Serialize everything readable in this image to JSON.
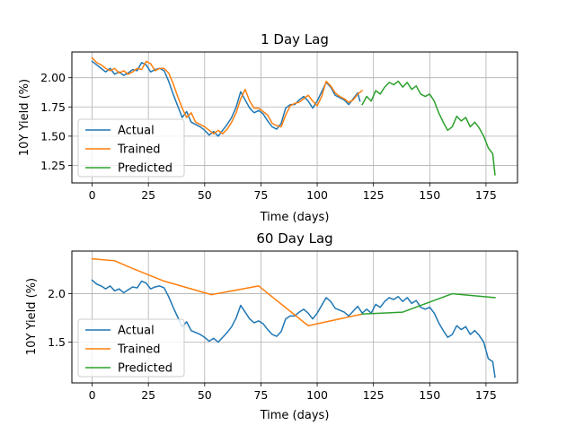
{
  "chart_data": [
    {
      "type": "line",
      "title": "1 Day Lag",
      "xlabel": "Time (days)",
      "ylabel": "10Y Yield (%)",
      "xlim": [
        -9,
        189
      ],
      "ylim": [
        1.1,
        2.22
      ],
      "xticks": [
        0,
        25,
        50,
        75,
        100,
        125,
        150,
        175
      ],
      "yticks": [
        1.25,
        1.5,
        1.75,
        2.0
      ],
      "ytick_labels": [
        "1.25",
        "1.50",
        "1.75",
        "2.00"
      ],
      "grid": true,
      "legend_position": "lower-left",
      "series": [
        {
          "name": "Actual",
          "color": "#1f77b4",
          "x": [
            0,
            2,
            4,
            6,
            8,
            10,
            12,
            14,
            16,
            18,
            20,
            22,
            24,
            26,
            28,
            30,
            32,
            34,
            36,
            38,
            40,
            42,
            44,
            46,
            48,
            50,
            52,
            54,
            56,
            58,
            60,
            62,
            64,
            66,
            68,
            70,
            72,
            74,
            76,
            78,
            80,
            82,
            84,
            86,
            88,
            90,
            92,
            94,
            96,
            98,
            100,
            102,
            104,
            106,
            108,
            110,
            112,
            114,
            116,
            118,
            119
          ],
          "y": [
            2.14,
            2.11,
            2.08,
            2.05,
            2.08,
            2.03,
            2.05,
            2.02,
            2.04,
            2.07,
            2.06,
            2.13,
            2.11,
            2.05,
            2.07,
            2.08,
            2.06,
            1.97,
            1.86,
            1.76,
            1.66,
            1.71,
            1.62,
            1.6,
            1.58,
            1.55,
            1.51,
            1.54,
            1.5,
            1.55,
            1.6,
            1.66,
            1.75,
            1.88,
            1.81,
            1.74,
            1.7,
            1.72,
            1.69,
            1.63,
            1.58,
            1.56,
            1.61,
            1.74,
            1.77,
            1.77,
            1.81,
            1.84,
            1.8,
            1.74,
            1.8,
            1.88,
            1.96,
            1.92,
            1.85,
            1.83,
            1.81,
            1.77,
            1.82,
            1.87,
            1.8
          ]
        },
        {
          "name": "Trained",
          "color": "#ff7f0e",
          "x": [
            0,
            2,
            4,
            6,
            8,
            10,
            12,
            14,
            16,
            18,
            20,
            22,
            24,
            26,
            28,
            30,
            32,
            34,
            36,
            38,
            40,
            42,
            44,
            46,
            48,
            50,
            52,
            54,
            56,
            58,
            60,
            62,
            64,
            66,
            68,
            70,
            72,
            74,
            76,
            78,
            80,
            82,
            84,
            86,
            88,
            90,
            92,
            94,
            96,
            98,
            100,
            102,
            104,
            106,
            108,
            110,
            112,
            114,
            116,
            118,
            120
          ],
          "y": [
            2.17,
            2.13,
            2.11,
            2.08,
            2.06,
            2.08,
            2.04,
            2.06,
            2.03,
            2.05,
            2.08,
            2.07,
            2.14,
            2.12,
            2.06,
            2.08,
            2.08,
            2.04,
            1.95,
            1.84,
            1.74,
            1.66,
            1.7,
            1.62,
            1.6,
            1.58,
            1.55,
            1.52,
            1.55,
            1.52,
            1.56,
            1.62,
            1.7,
            1.82,
            1.9,
            1.8,
            1.74,
            1.74,
            1.71,
            1.68,
            1.61,
            1.59,
            1.58,
            1.68,
            1.76,
            1.78,
            1.79,
            1.82,
            1.85,
            1.8,
            1.76,
            1.84,
            1.97,
            1.93,
            1.87,
            1.84,
            1.82,
            1.79,
            1.81,
            1.86,
            1.89
          ]
        },
        {
          "name": "Predicted",
          "color": "#2ca02c",
          "x": [
            120,
            122,
            124,
            126,
            128,
            130,
            132,
            134,
            136,
            138,
            140,
            142,
            144,
            146,
            148,
            150,
            152,
            154,
            156,
            158,
            160,
            162,
            164,
            166,
            168,
            170,
            172,
            174,
            176,
            178,
            179
          ],
          "y": [
            1.77,
            1.84,
            1.8,
            1.89,
            1.86,
            1.92,
            1.96,
            1.94,
            1.97,
            1.92,
            1.96,
            1.9,
            1.93,
            1.86,
            1.84,
            1.86,
            1.8,
            1.7,
            1.62,
            1.55,
            1.58,
            1.67,
            1.63,
            1.66,
            1.58,
            1.62,
            1.57,
            1.5,
            1.4,
            1.35,
            1.17
          ]
        }
      ]
    },
    {
      "type": "line",
      "title": "60 Day Lag",
      "xlabel": "Time (days)",
      "ylabel": "10Y Yield (%)",
      "xlim": [
        -9,
        189
      ],
      "ylim": [
        1.08,
        2.44
      ],
      "xticks": [
        0,
        25,
        50,
        75,
        100,
        125,
        150,
        175
      ],
      "yticks": [
        1.5,
        2.0
      ],
      "ytick_labels": [
        "1.5",
        "2.0"
      ],
      "grid": true,
      "legend_position": "lower-left",
      "series": [
        {
          "name": "Actual",
          "color": "#1f77b4",
          "x": [
            0,
            2,
            4,
            6,
            8,
            10,
            12,
            14,
            16,
            18,
            20,
            22,
            24,
            26,
            28,
            30,
            32,
            34,
            36,
            38,
            40,
            42,
            44,
            46,
            48,
            50,
            52,
            54,
            56,
            58,
            60,
            62,
            64,
            66,
            68,
            70,
            72,
            74,
            76,
            78,
            80,
            82,
            84,
            86,
            88,
            90,
            92,
            94,
            96,
            98,
            100,
            102,
            104,
            106,
            108,
            110,
            112,
            114,
            116,
            118,
            120,
            122,
            124,
            126,
            128,
            130,
            132,
            134,
            136,
            138,
            140,
            142,
            144,
            146,
            148,
            150,
            152,
            154,
            156,
            158,
            160,
            162,
            164,
            166,
            168,
            170,
            172,
            174,
            176,
            178,
            179
          ],
          "y": [
            2.14,
            2.1,
            2.08,
            2.05,
            2.08,
            2.03,
            2.05,
            2.01,
            2.04,
            2.07,
            2.06,
            2.13,
            2.11,
            2.05,
            2.07,
            2.08,
            2.06,
            1.97,
            1.86,
            1.76,
            1.66,
            1.71,
            1.62,
            1.6,
            1.58,
            1.55,
            1.51,
            1.54,
            1.5,
            1.55,
            1.6,
            1.66,
            1.75,
            1.88,
            1.81,
            1.74,
            1.7,
            1.72,
            1.69,
            1.63,
            1.58,
            1.56,
            1.61,
            1.74,
            1.77,
            1.77,
            1.81,
            1.84,
            1.8,
            1.74,
            1.8,
            1.88,
            1.96,
            1.92,
            1.85,
            1.83,
            1.81,
            1.77,
            1.82,
            1.87,
            1.8,
            1.84,
            1.8,
            1.89,
            1.86,
            1.92,
            1.96,
            1.94,
            1.97,
            1.92,
            1.96,
            1.9,
            1.93,
            1.86,
            1.84,
            1.86,
            1.8,
            1.7,
            1.62,
            1.55,
            1.58,
            1.67,
            1.63,
            1.66,
            1.58,
            1.62,
            1.57,
            1.5,
            1.33,
            1.3,
            1.14
          ]
        },
        {
          "name": "Trained",
          "color": "#ff7f0e",
          "x": [
            0,
            10,
            18,
            32,
            53,
            74,
            96,
            120
          ],
          "y": [
            2.36,
            2.34,
            2.26,
            2.13,
            1.99,
            2.08,
            1.67,
            1.79
          ]
        },
        {
          "name": "Predicted",
          "color": "#2ca02c",
          "x": [
            120,
            138,
            160,
            179
          ],
          "y": [
            1.79,
            1.81,
            2.0,
            1.96
          ]
        }
      ]
    }
  ]
}
